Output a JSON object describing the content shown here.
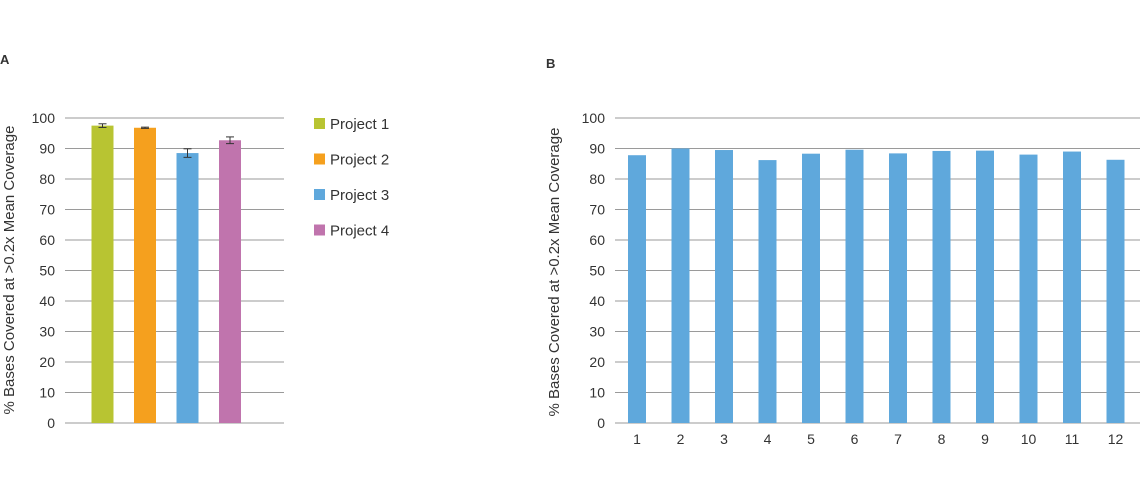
{
  "chart_data": [
    {
      "panel": "A",
      "type": "bar",
      "categories": [
        "Project 1",
        "Project 2",
        "Project 3",
        "Project 4"
      ],
      "values": [
        97.5,
        96.8,
        88.5,
        92.7
      ],
      "errors": [
        0.6,
        0.2,
        1.4,
        1.1
      ],
      "colors": [
        "#b8c432",
        "#f5a01e",
        "#5fa8dc",
        "#c074ad"
      ],
      "ylabel": "% Bases Covered at >0.2x Mean Coverage",
      "xlabel": "",
      "ylim": [
        0,
        100
      ],
      "yticks": [
        "0",
        "10",
        "20",
        "30",
        "40",
        "50",
        "60",
        "70",
        "80",
        "90",
        "100"
      ],
      "grid": true,
      "legend": {
        "position": "right",
        "entries": [
          "Project 1",
          "Project 2",
          "Project 3",
          "Project 4"
        ]
      }
    },
    {
      "panel": "B",
      "type": "bar",
      "categories": [
        "1",
        "2",
        "3",
        "4",
        "5",
        "6",
        "7",
        "8",
        "9",
        "10",
        "11",
        "12"
      ],
      "values": [
        87.8,
        90.0,
        89.5,
        86.2,
        88.3,
        89.6,
        88.4,
        89.2,
        89.3,
        88.0,
        89.0,
        86.3
      ],
      "color": "#5fa8dc",
      "ylabel": "% Bases Covered at >0.2x Mean Coverage",
      "xlabel": "",
      "ylim": [
        0,
        100
      ],
      "yticks": [
        "0",
        "10",
        "20",
        "30",
        "40",
        "50",
        "60",
        "70",
        "80",
        "90",
        "100"
      ],
      "grid": true
    }
  ]
}
